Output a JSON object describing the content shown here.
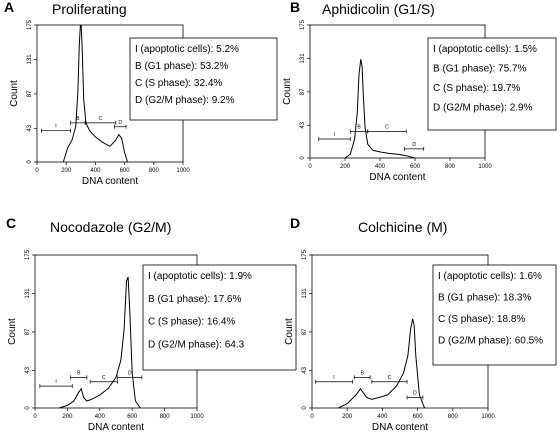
{
  "chart_data": [
    {
      "type": "line",
      "panel_label": "A",
      "title": "Proliferating",
      "xlabel": "DNA content",
      "ylabel": "Count",
      "x": [
        180,
        210,
        240,
        265,
        280,
        290,
        297,
        303,
        310,
        320,
        335,
        360,
        400,
        450,
        500,
        540,
        560,
        580,
        600,
        620
      ],
      "values": [
        0,
        18,
        28,
        45,
        90,
        150,
        175,
        175,
        140,
        80,
        50,
        40,
        32,
        25,
        20,
        28,
        35,
        30,
        12,
        0
      ],
      "xlim": [
        0,
        1000
      ],
      "xticks": [
        0,
        200,
        400,
        600,
        800,
        1000
      ],
      "ylim": [
        0,
        175
      ],
      "yticks": [
        0,
        43,
        87,
        131,
        175
      ],
      "color": "#000000",
      "gates": [
        {
          "label": "I",
          "range": [
            30,
            230
          ],
          "y": 40
        },
        {
          "label": "B",
          "range": [
            230,
            330
          ],
          "y": 50
        },
        {
          "label": "C",
          "range": [
            330,
            540
          ],
          "y": 50
        },
        {
          "label": "D",
          "range": [
            530,
            610
          ],
          "y": 45
        }
      ],
      "annotations": [
        "I (apoptotic cells): 5.2%",
        "B (G1 phase): 53.2%",
        "C (S phase): 32.4%",
        "D (G2/M phase): 9.2%"
      ]
    },
    {
      "type": "line",
      "panel_label": "B",
      "title": "Aphidicolin (G1/S)",
      "xlabel": "DNA content",
      "ylabel": "Count",
      "x": [
        200,
        230,
        255,
        270,
        280,
        290,
        298,
        305,
        315,
        330,
        360,
        400,
        450,
        500,
        550,
        600
      ],
      "values": [
        0,
        5,
        25,
        60,
        110,
        130,
        120,
        80,
        40,
        18,
        10,
        8,
        6,
        5,
        3,
        0
      ],
      "xlim": [
        0,
        1000
      ],
      "xticks": [
        0,
        200,
        400,
        600,
        800,
        1000
      ],
      "ylim": [
        0,
        175
      ],
      "yticks": [
        0,
        43,
        87,
        131,
        175
      ],
      "color": "#000000",
      "gates": [
        {
          "label": "I",
          "range": [
            50,
            230
          ],
          "y": 25
        },
        {
          "label": "B",
          "range": [
            230,
            330
          ],
          "y": 35
        },
        {
          "label": "C",
          "range": [
            330,
            550
          ],
          "y": 35
        },
        {
          "label": "D",
          "range": [
            540,
            650
          ],
          "y": 12
        }
      ],
      "annotations": [
        "I (apoptotic cells): 1.5%",
        "B (G1 phase): 75.7%",
        "C (S phase): 19.7%",
        "D (G2/M phase): 2.9%"
      ]
    },
    {
      "type": "line",
      "panel_label": "C",
      "title": "Nocodazole (G2/M)",
      "xlabel": "DNA content",
      "ylabel": "Count",
      "x": [
        150,
        200,
        240,
        270,
        285,
        300,
        320,
        350,
        400,
        450,
        500,
        530,
        550,
        565,
        575,
        585,
        600,
        620,
        650
      ],
      "values": [
        0,
        3,
        8,
        18,
        22,
        12,
        8,
        10,
        15,
        22,
        35,
        55,
        90,
        145,
        150,
        110,
        40,
        8,
        0
      ],
      "xlim": [
        0,
        1000
      ],
      "xticks": [
        0,
        200,
        400,
        600,
        800,
        1000
      ],
      "ylim": [
        0,
        175
      ],
      "yticks": [
        0,
        43,
        87,
        131,
        175
      ],
      "color": "#000000",
      "gates": [
        {
          "label": "I",
          "range": [
            30,
            230
          ],
          "y": 25
        },
        {
          "label": "B",
          "range": [
            220,
            320
          ],
          "y": 35
        },
        {
          "label": "C",
          "range": [
            340,
            510
          ],
          "y": 30
        },
        {
          "label": "D",
          "range": [
            510,
            660
          ],
          "y": 35
        }
      ],
      "annotations": [
        "I (apoptotic cells): 1.9%",
        "B (G1 phase): 17.6%",
        "C (S phase): 16.4%",
        "D (G2/M phase): 64.3"
      ]
    },
    {
      "type": "line",
      "panel_label": "D",
      "title": "Colchicine (M)",
      "xlabel": "DNA content",
      "ylabel": "Count",
      "x": [
        150,
        200,
        250,
        275,
        290,
        310,
        340,
        380,
        430,
        480,
        520,
        545,
        560,
        572,
        580,
        590,
        610,
        640
      ],
      "values": [
        0,
        5,
        15,
        22,
        18,
        12,
        10,
        12,
        15,
        25,
        40,
        60,
        90,
        102,
        95,
        60,
        15,
        0
      ],
      "xlim": [
        0,
        1000
      ],
      "xticks": [
        0,
        200,
        400,
        600,
        800,
        1000
      ],
      "ylim": [
        0,
        175
      ],
      "yticks": [
        0,
        43,
        87,
        131,
        175
      ],
      "color": "#000000",
      "gates": [
        {
          "label": "I",
          "range": [
            20,
            230
          ],
          "y": 30
        },
        {
          "label": "B",
          "range": [
            240,
            330
          ],
          "y": 35
        },
        {
          "label": "C",
          "range": [
            340,
            540
          ],
          "y": 30
        },
        {
          "label": "D",
          "range": [
            540,
            630
          ],
          "y": 12
        }
      ],
      "annotations": [
        "I (apoptotic cells): 1.6%",
        "B (G1 phase): 18.3%",
        "C (S phase): 18.8%",
        "D (G2/M phase): 60.5%"
      ]
    }
  ]
}
